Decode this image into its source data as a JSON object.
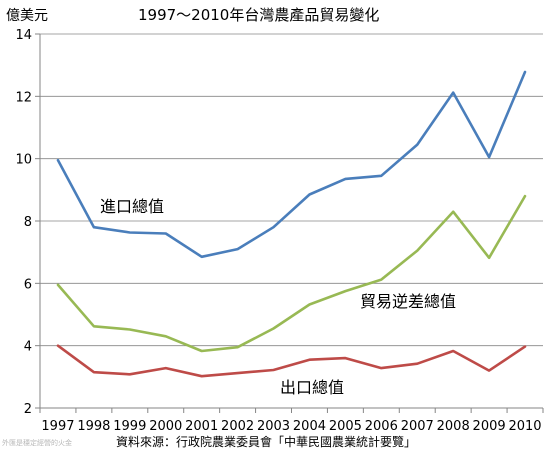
{
  "chart_data": {
    "type": "line",
    "title": "1997～2010年台灣農產品貿易變化",
    "ylabel": "億美元",
    "xlabel": "",
    "ylim": [
      2,
      14
    ],
    "yticks": [
      2,
      4,
      6,
      8,
      10,
      12,
      14
    ],
    "grid": true,
    "categories": [
      "1997",
      "1998",
      "1999",
      "2000",
      "2001",
      "2002",
      "2003",
      "2004",
      "2005",
      "2006",
      "2007",
      "2008",
      "2009",
      "2010"
    ],
    "series": [
      {
        "name": "進口總值",
        "color": "#4a7ebb",
        "values": [
          9.95,
          7.8,
          7.63,
          7.6,
          6.85,
          7.1,
          7.8,
          8.85,
          9.35,
          9.45,
          10.45,
          12.12,
          10.05,
          12.78
        ]
      },
      {
        "name": "貿易逆差總值",
        "color": "#98b954",
        "values": [
          5.95,
          4.62,
          4.52,
          4.3,
          3.83,
          3.95,
          4.55,
          5.32,
          5.75,
          6.12,
          7.05,
          8.3,
          6.82,
          8.8
        ]
      },
      {
        "name": "出口總值",
        "color": "#be4b48",
        "values": [
          4.0,
          3.15,
          3.08,
          3.28,
          3.02,
          3.12,
          3.22,
          3.55,
          3.6,
          3.28,
          3.42,
          3.83,
          3.2,
          3.97
        ]
      }
    ]
  },
  "source_text": "資料來源：行政院農業委員會「中華民國農業統計要覽」",
  "watermark_text": "外匯是穩定經營的火金"
}
